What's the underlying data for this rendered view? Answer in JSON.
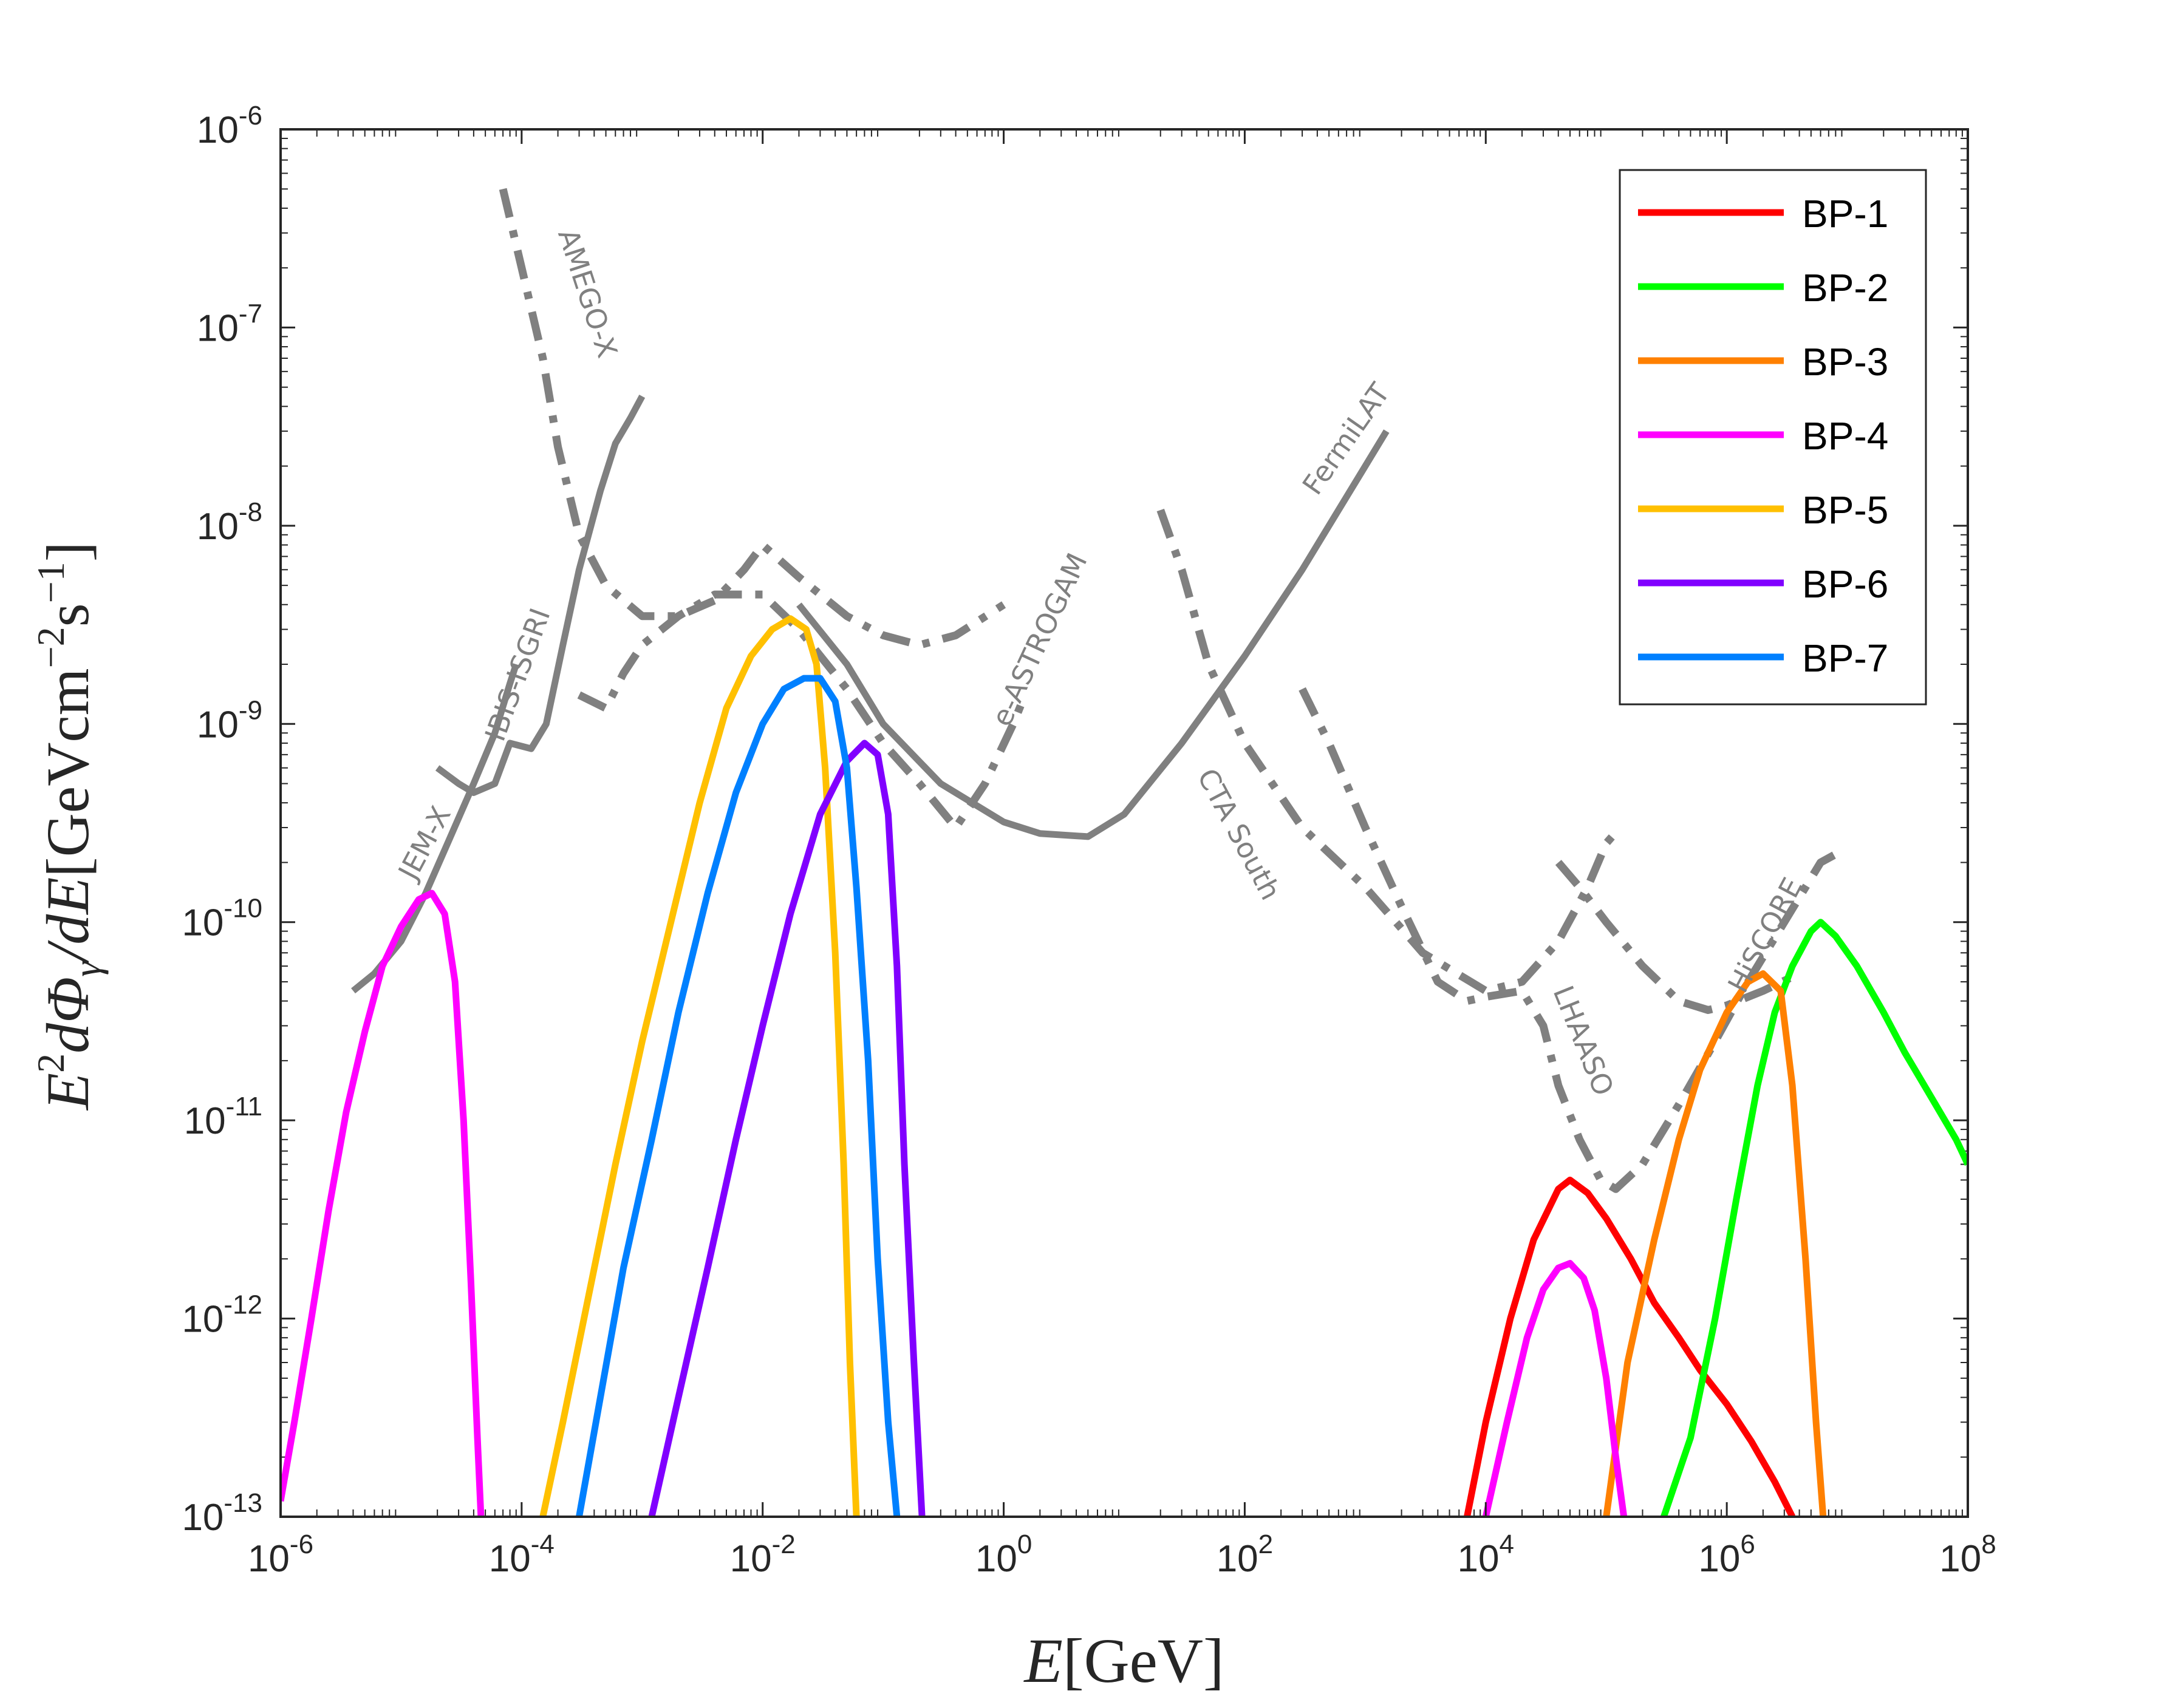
{
  "chart_data": {
    "type": "line",
    "xscale": "log",
    "yscale": "log",
    "xlim": [
      1e-06,
      100000000.0
    ],
    "ylim": [
      1e-13,
      1e-06
    ],
    "xlabel_math": "E",
    "xlabel_unit": "[GeV]",
    "ylabel_parts": [
      "E",
      "2",
      "dΦ",
      "γ",
      "/dE",
      "[GeVcm",
      "−2",
      "s",
      "−1",
      "]"
    ],
    "x_ticks": [
      {
        "base": "10",
        "exp": "-6",
        "value": 1e-06
      },
      {
        "base": "10",
        "exp": "-4",
        "value": 0.0001
      },
      {
        "base": "10",
        "exp": "-2",
        "value": 0.01
      },
      {
        "base": "10",
        "exp": "0",
        "value": 1
      },
      {
        "base": "10",
        "exp": "2",
        "value": 100.0
      },
      {
        "base": "10",
        "exp": "4",
        "value": 10000.0
      },
      {
        "base": "10",
        "exp": "6",
        "value": 1000000.0
      },
      {
        "base": "10",
        "exp": "8",
        "value": 100000000.0
      }
    ],
    "y_ticks": [
      {
        "base": "10",
        "exp": "-13",
        "value": 1e-13
      },
      {
        "base": "10",
        "exp": "-12",
        "value": 1e-12
      },
      {
        "base": "10",
        "exp": "-11",
        "value": 1e-11
      },
      {
        "base": "10",
        "exp": "-10",
        "value": 1e-10
      },
      {
        "base": "10",
        "exp": "-9",
        "value": 1e-09
      },
      {
        "base": "10",
        "exp": "-8",
        "value": 1e-08
      },
      {
        "base": "10",
        "exp": "-7",
        "value": 1e-07
      },
      {
        "base": "10",
        "exp": "-6",
        "value": 1e-06
      }
    ],
    "legend": {
      "position": "top-right"
    },
    "series": [
      {
        "name": "BP-1",
        "color": "#ff0000",
        "points": [
          [
            7000.0,
            1e-13
          ],
          [
            10000.0,
            3e-13
          ],
          [
            16000.0,
            1e-12
          ],
          [
            25000.0,
            2.5e-12
          ],
          [
            40000.0,
            4.5e-12
          ],
          [
            50000.0,
            5e-12
          ],
          [
            70000.0,
            4.3e-12
          ],
          [
            100000.0,
            3.2e-12
          ],
          [
            160000.0,
            2e-12
          ],
          [
            250000.0,
            1.2e-12
          ],
          [
            400000.0,
            8e-13
          ],
          [
            600000.0,
            5.5e-13
          ],
          [
            1000000.0,
            3.7e-13
          ],
          [
            1600000.0,
            2.4e-13
          ],
          [
            2500000.0,
            1.5e-13
          ],
          [
            3500000.0,
            1e-13
          ]
        ]
      },
      {
        "name": "BP-2",
        "color": "#00ff00",
        "points": [
          [
            300000.0,
            1e-13
          ],
          [
            500000.0,
            2.5e-13
          ],
          [
            800000.0,
            1e-12
          ],
          [
            1200000.0,
            4e-12
          ],
          [
            1800000.0,
            1.5e-11
          ],
          [
            2500000.0,
            3.5e-11
          ],
          [
            3500000.0,
            6e-11
          ],
          [
            5000000.0,
            9e-11
          ],
          [
            6000000.0,
            1e-10
          ],
          [
            8000000.0,
            8.5e-11
          ],
          [
            12000000.0,
            6e-11
          ],
          [
            20000000.0,
            3.5e-11
          ],
          [
            30000000.0,
            2.2e-11
          ],
          [
            50000000.0,
            1.3e-11
          ],
          [
            80000000.0,
            8e-12
          ],
          [
            100000000.0,
            6e-12
          ]
        ]
      },
      {
        "name": "BP-3",
        "color": "#ff8000",
        "points": [
          [
            100000.0,
            1e-13
          ],
          [
            150000.0,
            6e-13
          ],
          [
            250000.0,
            2.5e-12
          ],
          [
            400000.0,
            8e-12
          ],
          [
            600000.0,
            1.8e-11
          ],
          [
            1000000.0,
            3.5e-11
          ],
          [
            1500000.0,
            5e-11
          ],
          [
            2000000.0,
            5.5e-11
          ],
          [
            2800000.0,
            4.5e-11
          ],
          [
            3500000.0,
            1.5e-11
          ],
          [
            4500000.0,
            2e-12
          ],
          [
            5500000.0,
            3e-13
          ],
          [
            6300000.0,
            1e-13
          ]
        ]
      },
      {
        "name": "BP-4",
        "color": "#ff00ff",
        "points": [
          [
            1e-06,
            1.2e-13
          ],
          [
            1.3e-06,
            3e-13
          ],
          [
            1.8e-06,
            1e-12
          ],
          [
            2.5e-06,
            3.5e-12
          ],
          [
            3.5e-06,
            1.1e-11
          ],
          [
            5e-06,
            2.8e-11
          ],
          [
            7e-06,
            6e-11
          ],
          [
            1e-05,
            9.5e-11
          ],
          [
            1.4e-05,
            1.3e-10
          ],
          [
            1.8e-05,
            1.4e-10
          ],
          [
            2.3e-05,
            1.1e-10
          ],
          [
            2.8e-05,
            5e-11
          ],
          [
            3.3e-05,
            1e-11
          ],
          [
            3.8e-05,
            1.5e-12
          ],
          [
            4.3e-05,
            2.5e-13
          ],
          [
            4.6e-05,
            1e-13
          ],
          [
            10000.0,
            1e-13
          ],
          [
            15000.0,
            3e-13
          ],
          [
            22000.0,
            8e-13
          ],
          [
            30000.0,
            1.4e-12
          ],
          [
            40000.0,
            1.8e-12
          ],
          [
            50000.0,
            1.9e-12
          ],
          [
            65000.0,
            1.6e-12
          ],
          [
            80000.0,
            1.1e-12
          ],
          [
            100000.0,
            5e-13
          ],
          [
            120000.0,
            2e-13
          ],
          [
            140000.0,
            1e-13
          ]
        ]
      },
      {
        "name": "BP-5",
        "color": "#ffc000",
        "points": [
          [
            0.00015,
            1e-13
          ],
          [
            0.00022,
            3e-13
          ],
          [
            0.00035,
            1.2e-12
          ],
          [
            0.0006,
            6e-12
          ],
          [
            0.001,
            2.5e-11
          ],
          [
            0.0018,
            1.1e-10
          ],
          [
            0.003,
            4e-10
          ],
          [
            0.005,
            1.2e-09
          ],
          [
            0.008,
            2.2e-09
          ],
          [
            0.012,
            3e-09
          ],
          [
            0.017,
            3.4e-09
          ],
          [
            0.023,
            3e-09
          ],
          [
            0.028,
            2e-09
          ],
          [
            0.033,
            6e-10
          ],
          [
            0.04,
            7e-11
          ],
          [
            0.047,
            6e-12
          ],
          [
            0.053,
            6e-13
          ],
          [
            0.06,
            1e-13
          ]
        ]
      },
      {
        "name": "BP-6",
        "color": "#8000ff",
        "points": [
          [
            0.0012,
            1e-13
          ],
          [
            0.002,
            4e-13
          ],
          [
            0.0035,
            1.8e-12
          ],
          [
            0.006,
            8e-12
          ],
          [
            0.01,
            3e-11
          ],
          [
            0.017,
            1.1e-10
          ],
          [
            0.03,
            3.5e-10
          ],
          [
            0.05,
            6.5e-10
          ],
          [
            0.07,
            8e-10
          ],
          [
            0.09,
            7e-10
          ],
          [
            0.11,
            3.5e-10
          ],
          [
            0.13,
            6e-11
          ],
          [
            0.15,
            6e-12
          ],
          [
            0.18,
            6e-13
          ],
          [
            0.21,
            1e-13
          ]
        ]
      },
      {
        "name": "BP-7",
        "color": "#0080ff",
        "points": [
          [
            0.0003,
            1e-13
          ],
          [
            0.00045,
            4e-13
          ],
          [
            0.0007,
            1.8e-12
          ],
          [
            0.0012,
            8e-12
          ],
          [
            0.002,
            3.5e-11
          ],
          [
            0.0035,
            1.4e-10
          ],
          [
            0.006,
            4.5e-10
          ],
          [
            0.01,
            1e-09
          ],
          [
            0.015,
            1.5e-09
          ],
          [
            0.022,
            1.7e-09
          ],
          [
            0.03,
            1.7e-09
          ],
          [
            0.04,
            1.3e-09
          ],
          [
            0.05,
            6e-10
          ],
          [
            0.06,
            1.5e-10
          ],
          [
            0.075,
            2e-11
          ],
          [
            0.09,
            2e-12
          ],
          [
            0.11,
            3e-13
          ],
          [
            0.13,
            1e-13
          ]
        ]
      }
    ],
    "sensitivities": [
      {
        "label": "JEM-X",
        "style": "solid",
        "points": [
          [
            4e-06,
            4.5e-11
          ],
          [
            6e-06,
            5.5e-11
          ],
          [
            1e-05,
            8e-11
          ],
          [
            1.6e-05,
            1.4e-10
          ],
          [
            2.5e-05,
            2.6e-10
          ],
          [
            4e-05,
            5e-10
          ],
          [
            6e-05,
            9e-10
          ],
          [
            8e-05,
            1.6e-09
          ],
          [
            9e-05,
            2e-09
          ]
        ]
      },
      {
        "label": "IBIS-ISGRI",
        "style": "solid",
        "points": [
          [
            2e-05,
            6e-10
          ],
          [
            3e-05,
            5e-10
          ],
          [
            4e-05,
            4.5e-10
          ],
          [
            6e-05,
            5e-10
          ],
          [
            8e-05,
            8e-10
          ],
          [
            0.00012,
            7.5e-10
          ],
          [
            0.00016,
            1e-09
          ],
          [
            0.00022,
            2.5e-09
          ],
          [
            0.0003,
            6e-09
          ],
          [
            0.00045,
            1.5e-08
          ],
          [
            0.0006,
            2.6e-08
          ],
          [
            0.0008,
            3.5e-08
          ],
          [
            0.001,
            4.5e-08
          ]
        ]
      },
      {
        "label": "AMEGO-X",
        "style": "dashdot",
        "points": [
          [
            7e-05,
            5e-07
          ],
          [
            0.0001,
            2e-07
          ],
          [
            0.00015,
            7e-08
          ],
          [
            0.0002,
            2.5e-08
          ],
          [
            0.0003,
            9e-09
          ],
          [
            0.0005,
            5e-09
          ],
          [
            0.001,
            3.5e-09
          ],
          [
            0.002,
            3.5e-09
          ],
          [
            0.004,
            4.2e-09
          ],
          [
            0.007,
            6e-09
          ],
          [
            0.01,
            8e-09
          ],
          [
            0.02,
            5.5e-09
          ],
          [
            0.05,
            3.5e-09
          ],
          [
            0.1,
            2.8e-09
          ],
          [
            0.2,
            2.5e-09
          ],
          [
            0.4,
            2.8e-09
          ],
          [
            1,
            4e-09
          ]
        ]
      },
      {
        "label": "e-ASTROGAM",
        "style": "dashdot",
        "points": [
          [
            0.0003,
            1.4e-09
          ],
          [
            0.0005,
            1.2e-09
          ],
          [
            0.0007,
            1.8e-09
          ],
          [
            0.001,
            2.5e-09
          ],
          [
            0.002,
            3.5e-09
          ],
          [
            0.004,
            4.5e-09
          ],
          [
            0.01,
            4.5e-09
          ],
          [
            0.02,
            3e-09
          ],
          [
            0.05,
            1.5e-09
          ],
          [
            0.1,
            8e-10
          ],
          [
            0.2,
            5e-10
          ],
          [
            0.4,
            3e-10
          ],
          [
            0.7,
            5e-10
          ],
          [
            1.2,
            1e-09
          ],
          [
            1.5,
            1.4e-09
          ]
        ]
      },
      {
        "label": "FermiLAT",
        "style": "solid",
        "points": [
          [
            0.02,
            4e-09
          ],
          [
            0.05,
            2e-09
          ],
          [
            0.1,
            1e-09
          ],
          [
            0.3,
            5e-10
          ],
          [
            1,
            3.2e-10
          ],
          [
            2,
            2.8e-10
          ],
          [
            5,
            2.7e-10
          ],
          [
            10.0,
            3.5e-10
          ],
          [
            30.0,
            8e-10
          ],
          [
            100.0,
            2.2e-09
          ],
          [
            300.0,
            6e-09
          ],
          [
            1000.0,
            2e-08
          ],
          [
            1500.0,
            3e-08
          ]
        ]
      },
      {
        "label": "CTA South",
        "style": "dashdot",
        "points": [
          [
            20.0,
            1.2e-08
          ],
          [
            30.0,
            6e-09
          ],
          [
            50.0,
            2e-09
          ],
          [
            100.0,
            8e-10
          ],
          [
            300.0,
            3e-10
          ],
          [
            1000.0,
            1.5e-10
          ],
          [
            3000.0,
            7e-11
          ],
          [
            10000.0,
            4.5e-11
          ],
          [
            20000.0,
            5e-11
          ],
          [
            40000.0,
            8e-11
          ],
          [
            70000.0,
            1.5e-10
          ],
          [
            100000.0,
            2.5e-10
          ],
          [
            130000.0,
            3e-10
          ]
        ]
      },
      {
        "label": "LHAASO",
        "style": "dashdot",
        "points": [
          [
            300.0,
            1.5e-09
          ],
          [
            500.0,
            8e-10
          ],
          [
            1000.0,
            3e-10
          ],
          [
            2000.0,
            1.2e-10
          ],
          [
            4000.0,
            5e-11
          ],
          [
            7000.0,
            4e-11
          ],
          [
            10000.0,
            4.2e-11
          ],
          [
            20000.0,
            4.5e-11
          ],
          [
            30000.0,
            3e-11
          ],
          [
            40000.0,
            1.5e-11
          ],
          [
            60000.0,
            8e-12
          ],
          [
            90000.0,
            5e-12
          ],
          [
            120000.0,
            4.5e-12
          ],
          [
            200000.0,
            6e-12
          ],
          [
            400000.0,
            1.2e-11
          ],
          [
            800000.0,
            2.5e-11
          ],
          [
            1500000.0,
            5e-11
          ],
          [
            3000000.0,
            1e-10
          ],
          [
            6000000.0,
            2e-10
          ],
          [
            8000000.0,
            2.2e-10
          ]
        ]
      },
      {
        "label": "HiSCORE",
        "style": "dashdot",
        "points": [
          [
            40000.0,
            2e-10
          ],
          [
            60000.0,
            1.5e-10
          ],
          [
            100000.0,
            1e-10
          ],
          [
            200000.0,
            6e-11
          ],
          [
            400000.0,
            4e-11
          ],
          [
            700000.0,
            3.6e-11
          ],
          [
            1000000.0,
            3.8e-11
          ],
          [
            2000000.0,
            4.5e-11
          ],
          [
            4000000.0,
            5.5e-11
          ]
        ]
      }
    ]
  }
}
